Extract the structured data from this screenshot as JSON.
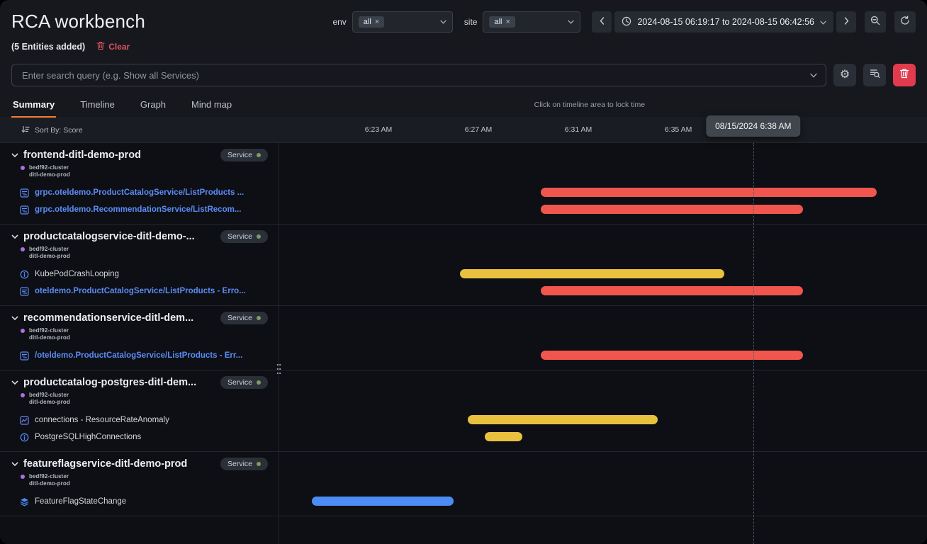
{
  "header": {
    "title": "RCA workbench",
    "entities_added": "(5 Entities added)",
    "clear_label": "Clear",
    "env_label": "env",
    "env_value": "all",
    "site_label": "site",
    "site_value": "all",
    "time_range": "2024-08-15 06:19:17 to 2024-08-15 06:42:56"
  },
  "icons": {
    "close": "×",
    "gear": "⚙"
  },
  "search": {
    "placeholder": "Enter search query (e.g. Show all Services)"
  },
  "tabs": [
    {
      "label": "Summary",
      "active": true
    },
    {
      "label": "Timeline",
      "active": false
    },
    {
      "label": "Graph",
      "active": false
    },
    {
      "label": "Mind map",
      "active": false
    }
  ],
  "timeline": {
    "hint": "Click on timeline area to lock time",
    "sort_by": "Sort By: Score",
    "axis_start": "06:19:00",
    "axis_end": "06:44:30",
    "ticks": [
      "6:23 AM",
      "6:27 AM",
      "6:31 AM",
      "6:35 AM"
    ],
    "tick_times": [
      "06:23:00",
      "06:27:00",
      "06:31:00",
      "06:35:00"
    ],
    "locked_time_label": "08/15/2024 6:38 AM",
    "locked_time": "06:38:00"
  },
  "colors": {
    "critical": "#f0564e",
    "warning": "#e9c13e",
    "info_event": "#4d8cf5",
    "link": "#5b8bf5",
    "accent_tab": "#ef7d31",
    "service_status_dot": "#7f9a65",
    "cluster_dot": "#b16ce8",
    "danger": "#e23b4e"
  },
  "groups": [
    {
      "name": "frontend-ditl-demo-prod",
      "badge": "Service",
      "cluster": "bedf92-cluster",
      "namespace": "ditl-demo-prod",
      "items": [
        {
          "icon": "trace-icon",
          "label": "grpc.oteldemo.ProductCatalogService/ListProducts ...",
          "link": true,
          "bar": {
            "start": "06:29:30",
            "end": "06:42:56",
            "severity": "critical"
          }
        },
        {
          "icon": "trace-icon",
          "label": "grpc.oteldemo.RecommendationService/ListRecom...",
          "link": true,
          "bar": {
            "start": "06:29:30",
            "end": "06:40:00",
            "severity": "critical"
          }
        }
      ]
    },
    {
      "name": "productcatalogservice-ditl-demo-...",
      "badge": "Service",
      "cluster": "bedf92-cluster",
      "namespace": "ditl-demo-prod",
      "items": [
        {
          "icon": "info-icon",
          "label": "KubePodCrashLooping",
          "link": false,
          "bar": {
            "start": "06:26:15",
            "end": "06:36:50",
            "severity": "warning"
          }
        },
        {
          "icon": "trace-icon",
          "label": "oteldemo.ProductCatalogService/ListProducts - Erro...",
          "link": true,
          "bar": {
            "start": "06:29:30",
            "end": "06:40:00",
            "severity": "critical"
          }
        }
      ]
    },
    {
      "name": "recommendationservice-ditl-dem...",
      "badge": "Service",
      "cluster": "bedf92-cluster",
      "namespace": "ditl-demo-prod",
      "items": [
        {
          "icon": "trace-icon",
          "label": "/oteldemo.ProductCatalogService/ListProducts - Err...",
          "link": true,
          "bar": {
            "start": "06:29:30",
            "end": "06:40:00",
            "severity": "critical"
          }
        }
      ]
    },
    {
      "name": "productcatalog-postgres-ditl-dem...",
      "badge": "Service",
      "cluster": "bedf92-cluster",
      "namespace": "ditl-demo-prod",
      "items": [
        {
          "icon": "anomaly-icon",
          "label": "connections - ResourceRateAnomaly",
          "link": false,
          "bar": {
            "start": "06:26:35",
            "end": "06:34:10",
            "severity": "warning"
          }
        },
        {
          "icon": "info-icon",
          "label": "PostgreSQLHighConnections",
          "link": false,
          "bar": {
            "start": "06:27:15",
            "end": "06:28:45",
            "severity": "warning"
          }
        }
      ]
    },
    {
      "name": "featureflagservice-ditl-demo-prod",
      "badge": "Service",
      "cluster": "bedf92-cluster",
      "namespace": "ditl-demo-prod",
      "items": [
        {
          "icon": "layers-icon",
          "label": "FeatureFlagStateChange",
          "link": false,
          "bar": {
            "start": "06:20:20",
            "end": "06:26:00",
            "severity": "event"
          }
        }
      ]
    }
  ]
}
